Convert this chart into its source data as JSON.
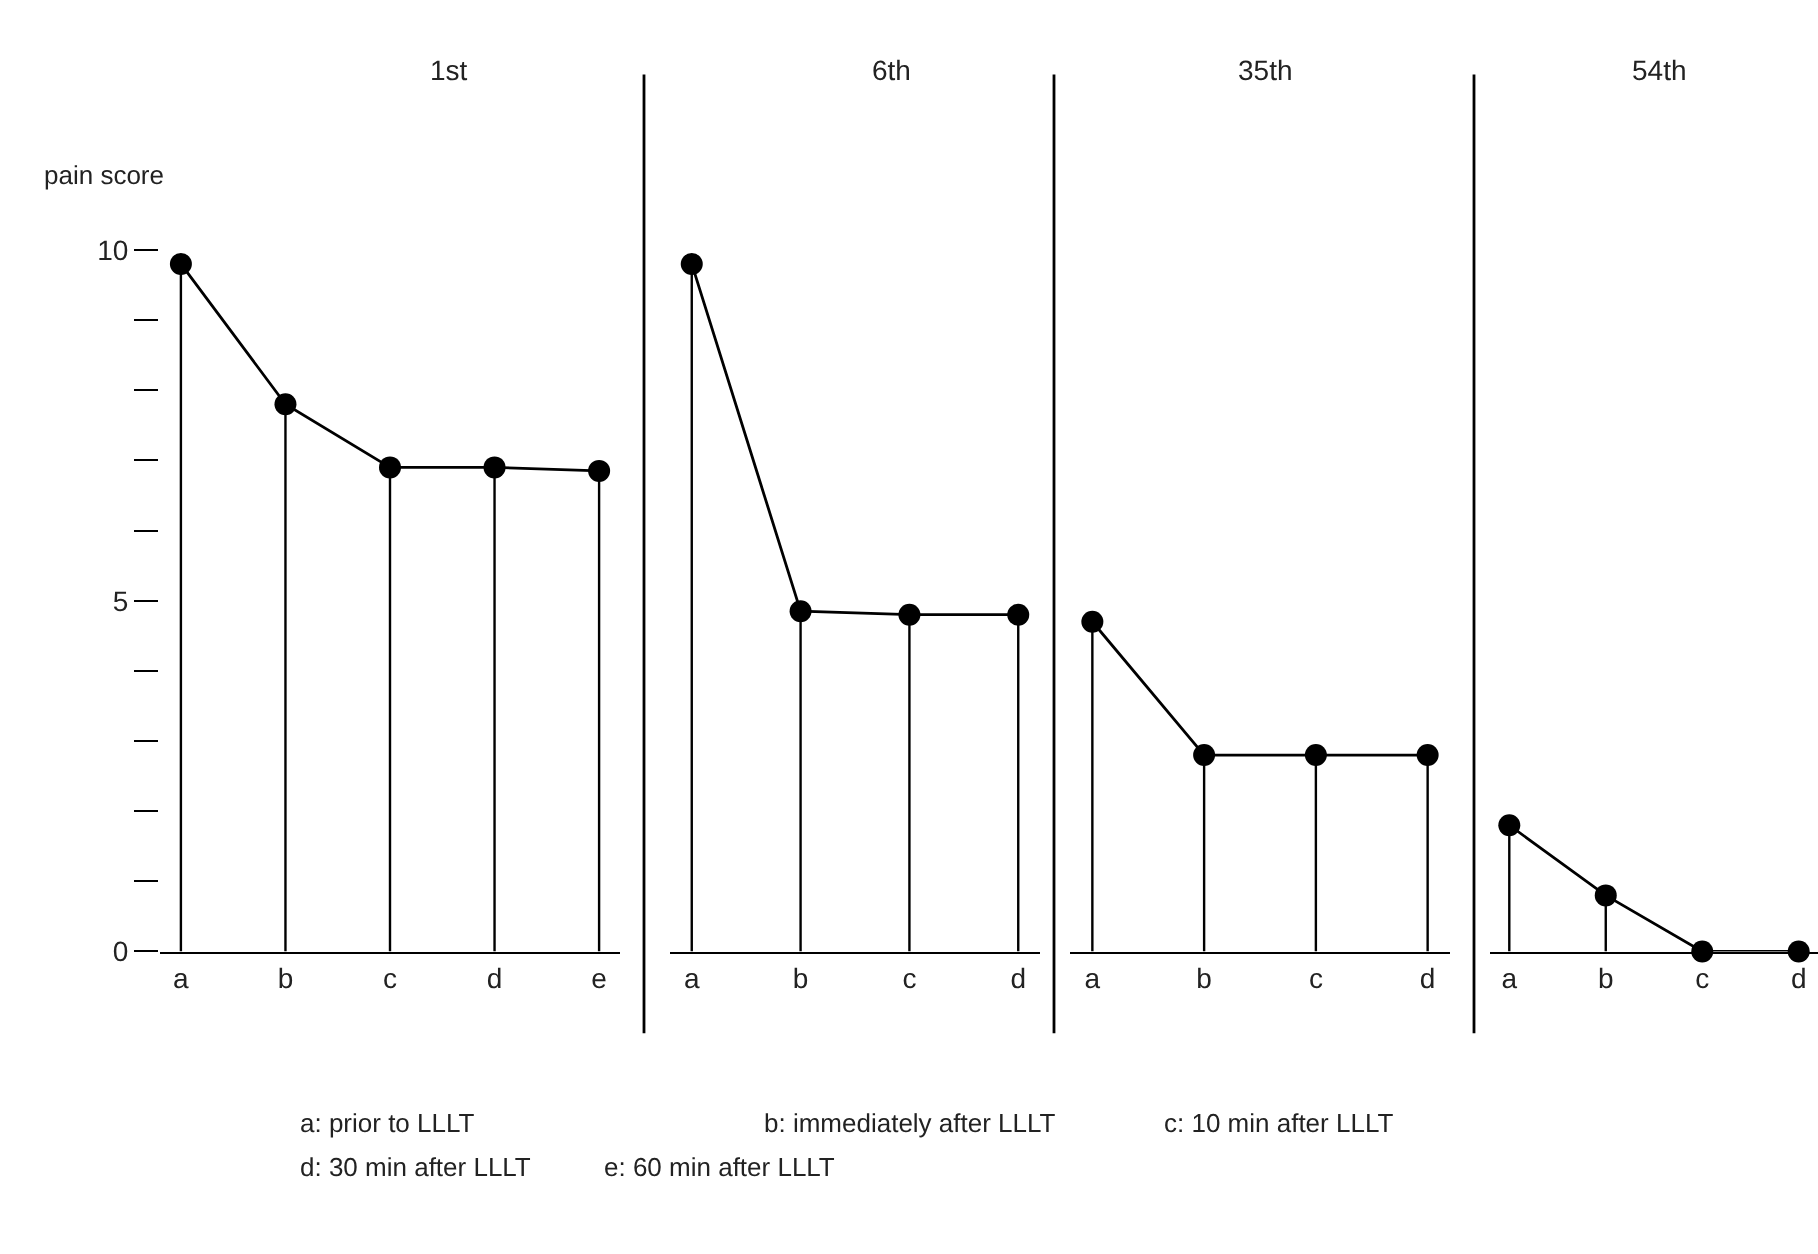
{
  "chart_data": [
    {
      "type": "lollipop",
      "title": "1st",
      "ylabel": "pain score",
      "categories": [
        "a",
        "b",
        "c",
        "d",
        "e"
      ],
      "ylim": [
        0,
        10
      ],
      "yticks": [
        0,
        {
          "value": 1,
          "label": null
        },
        {
          "value": 2,
          "label": null
        },
        {
          "value": 3,
          "label": null
        },
        {
          "value": 4,
          "label": null
        },
        5,
        {
          "value": 6,
          "label": null
        },
        {
          "value": 7,
          "label": null
        },
        {
          "value": 8,
          "label": null
        },
        {
          "value": 9,
          "label": null
        },
        10
      ],
      "series": [
        {
          "color": "#000000",
          "marker": "circle",
          "values": [
            9.8,
            7.8,
            6.9,
            6.9,
            6.85
          ]
        },
        {
          "type": "line",
          "color": "#000000",
          "line_style": "solid",
          "values": [
            9.8,
            7.8,
            6.9,
            6.9,
            6.85
          ]
        }
      ],
      "annotations": [
        "a: prior to LLLT",
        "b: immediately after LLLT",
        "c: 10 min after LLLT",
        "d: 30 min after LLLT",
        "e: 60 min after LLLT"
      ]
    },
    {
      "type": "lollipop",
      "title": "6th",
      "categories": [
        "a",
        "b",
        "c",
        "d"
      ],
      "ylim": [
        0,
        10
      ],
      "tick_labels": "x",
      "series": [
        {
          "color": "#000000",
          "marker": "circle",
          "values": [
            9.8,
            4.85,
            4.8,
            4.8
          ]
        },
        {
          "type": "line",
          "color": "#000000",
          "line_style": "solid",
          "values": [
            9.8,
            4.85,
            4.8,
            4.8
          ]
        }
      ]
    },
    {
      "type": "lollipop",
      "title": "35th",
      "categories": [
        "a",
        "b",
        "c",
        "d"
      ],
      "ylim": [
        0,
        10
      ],
      "tick_labels": "x",
      "series": [
        {
          "color": "#000000",
          "marker": "circle",
          "values": [
            4.7,
            2.8,
            2.8,
            2.8
          ]
        },
        {
          "type": "line",
          "color": "#000000",
          "line_style": "solid",
          "values": [
            4.7,
            2.8,
            2.8,
            2.8
          ]
        }
      ]
    },
    {
      "type": "lollipop",
      "title": "54th",
      "categories": [
        "a",
        "b",
        "c",
        "d"
      ],
      "ylim": [
        0,
        10
      ],
      "tick_labels": "x",
      "series": [
        {
          "color": "#000000",
          "marker": "circle",
          "values": [
            1.8,
            0.8,
            0,
            0
          ]
        },
        {
          "type": "line",
          "color": "#000000",
          "line_style": "solid",
          "values": [
            1.8,
            0.8,
            0,
            0
          ]
        }
      ]
    }
  ]
}
